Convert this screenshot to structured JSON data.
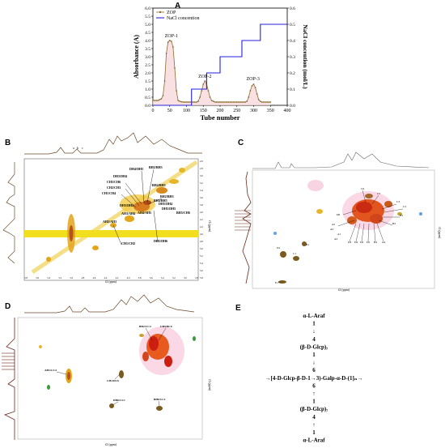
{
  "panels": {
    "A": {
      "label": "A",
      "chart_data": {
        "type": "line",
        "xlabel": "Tube number",
        "ylabel": "Absorbance (A)",
        "ylabel_right": "NaCl concention (mol/L)",
        "xlim": [
          0,
          400
        ],
        "ylim": [
          0,
          6.0
        ],
        "ylim_right": [
          0,
          0.6
        ],
        "x_ticks": [
          "0",
          "50",
          "100",
          "150",
          "200",
          "250",
          "300",
          "350",
          "400"
        ],
        "y_ticks": [
          "0.0",
          "0.5",
          "1.0",
          "1.5",
          "2.0",
          "2.5",
          "3.0",
          "3.5",
          "4.0",
          "4.5",
          "5.0",
          "5.5",
          "6.0"
        ],
        "y_ticks_right": [
          "0.0",
          "0.1",
          "0.2",
          "0.3",
          "0.4",
          "0.5",
          "0.6"
        ],
        "legend": {
          "placement": "top-left",
          "entries": [
            "ZOP",
            "NaCl concention"
          ]
        },
        "series": [
          {
            "name": "ZOP",
            "color": "#8b6a2e",
            "x": [
              0,
              5,
              10,
              15,
              20,
              25,
              30,
              35,
              40,
              45,
              50,
              55,
              60,
              65,
              70,
              75,
              80,
              85,
              90,
              95,
              100,
              105,
              110,
              115,
              120,
              125,
              130,
              135,
              140,
              145,
              150,
              155,
              160,
              165,
              170,
              175,
              180,
              185,
              190,
              195,
              200,
              205,
              210,
              215,
              220,
              225,
              230,
              235,
              240,
              245,
              250,
              255,
              260,
              265,
              270,
              275,
              280,
              285,
              290,
              295,
              300,
              305,
              310,
              315,
              320,
              325,
              330,
              335,
              340,
              345,
              350
            ],
            "y": [
              0.3,
              0.3,
              0.3,
              0.3,
              0.35,
              0.4,
              0.6,
              1.5,
              3.2,
              3.9,
              4.0,
              3.95,
              3.6,
              2.3,
              0.9,
              0.3,
              0.25,
              0.22,
              0.2,
              0.2,
              0.2,
              0.2,
              0.2,
              0.2,
              0.2,
              0.2,
              0.2,
              0.25,
              0.5,
              0.9,
              1.3,
              1.5,
              1.3,
              0.9,
              0.5,
              0.3,
              0.25,
              0.2,
              0.2,
              0.2,
              0.2,
              0.2,
              0.2,
              0.2,
              0.2,
              0.2,
              0.2,
              0.2,
              0.2,
              0.2,
              0.2,
              0.2,
              0.2,
              0.2,
              0.2,
              0.2,
              0.25,
              0.5,
              0.9,
              1.2,
              1.3,
              1.1,
              0.7,
              0.35,
              0.25,
              0.2,
              0.2,
              0.2,
              0.2,
              0.2,
              0.2
            ]
          },
          {
            "name": "NaCl concention",
            "color": "#2222dd",
            "axis": "right",
            "x": [
              0,
              115,
              115,
              160,
              160,
              200,
              200,
              265,
              265,
              320,
              320,
              400
            ],
            "y": [
              0,
              0,
              0.1,
              0.1,
              0.2,
              0.2,
              0.3,
              0.3,
              0.4,
              0.4,
              0.5,
              0.5
            ]
          }
        ],
        "annotations": [
          {
            "text": "ZOP-1",
            "x": 55,
            "y": 4.2
          },
          {
            "text": "ZOP-2",
            "x": 155,
            "y": 1.7
          },
          {
            "text": "ZOP-3",
            "x": 298,
            "y": 1.55
          }
        ]
      }
    },
    "B": {
      "label": "B",
      "xlabel": "f2 (ppm)",
      "ylabel": "f1 (ppm)",
      "x_ticks": [
        "5.8",
        "5.6",
        "5.4",
        "5.2",
        "5.0",
        "4.8",
        "4.6",
        "4.4",
        "4.2",
        "4.0",
        "3.8",
        "3.6",
        "3.4",
        "3.2",
        "3.0",
        "2.8"
      ],
      "y_ticks": [
        "2.6",
        "2.8",
        "3.0",
        "3.2",
        "3.4",
        "3.6",
        "3.8",
        "4.0",
        "4.2",
        "4.4",
        "4.6",
        "4.8",
        "5.0",
        "5.2",
        "5.4",
        "5.6",
        "5.8"
      ],
      "annotations": [
        "DH4/DH5",
        "BH2/BH3",
        "CH5/CH6",
        "DH3/DH4",
        "CH2/CH3",
        "CH1/CH4",
        "BH2/BH3",
        "DH5/DH4",
        "BH5/CH6",
        "AH3/AH4",
        "AH4/AH5",
        "AH2/AH3",
        "CH1/CH2",
        "DH5/DH6",
        "DH5/DH5",
        "BH4/BH5",
        "DH3/DH4",
        "BH4/BH5"
      ],
      "scale_labels": [
        "a",
        "b",
        "c"
      ]
    },
    "C": {
      "label": "C",
      "xlabel": "f2 (ppm)",
      "ylabel": "f1 (ppm)",
      "annotations": [
        "C6",
        "D6",
        "C3",
        "C5",
        "C2",
        "B5",
        "B2",
        "A5",
        "A3",
        "A1",
        "A2",
        "D3",
        "D4",
        "D2",
        "D5",
        "B4",
        "A4",
        "E1",
        "D1",
        "C1",
        "B1"
      ]
    },
    "D": {
      "label": "D",
      "xlabel": "f2 (ppm)",
      "ylabel": "f1 (ppm)",
      "annotations": [
        "BH2/CC4",
        "CH5/BC6",
        "AH1/CC4",
        "CH1/DC6",
        "DH6/CC1",
        "BH6/CC1"
      ]
    },
    "E": {
      "label": "E",
      "structure_lines": [
        "α-L-Araf",
        "1",
        "↓",
        "4",
        "(β-D-Glcp)₇",
        "1",
        "↓",
        "6",
        "→[4-D-Glcp-β-D-1→3)-Galp-α-D-(1]ₙ→",
        "6",
        "↑",
        "1",
        "(β-D-Glcp)₇",
        "4",
        "↑",
        "1",
        "α-L-Araf"
      ]
    }
  }
}
